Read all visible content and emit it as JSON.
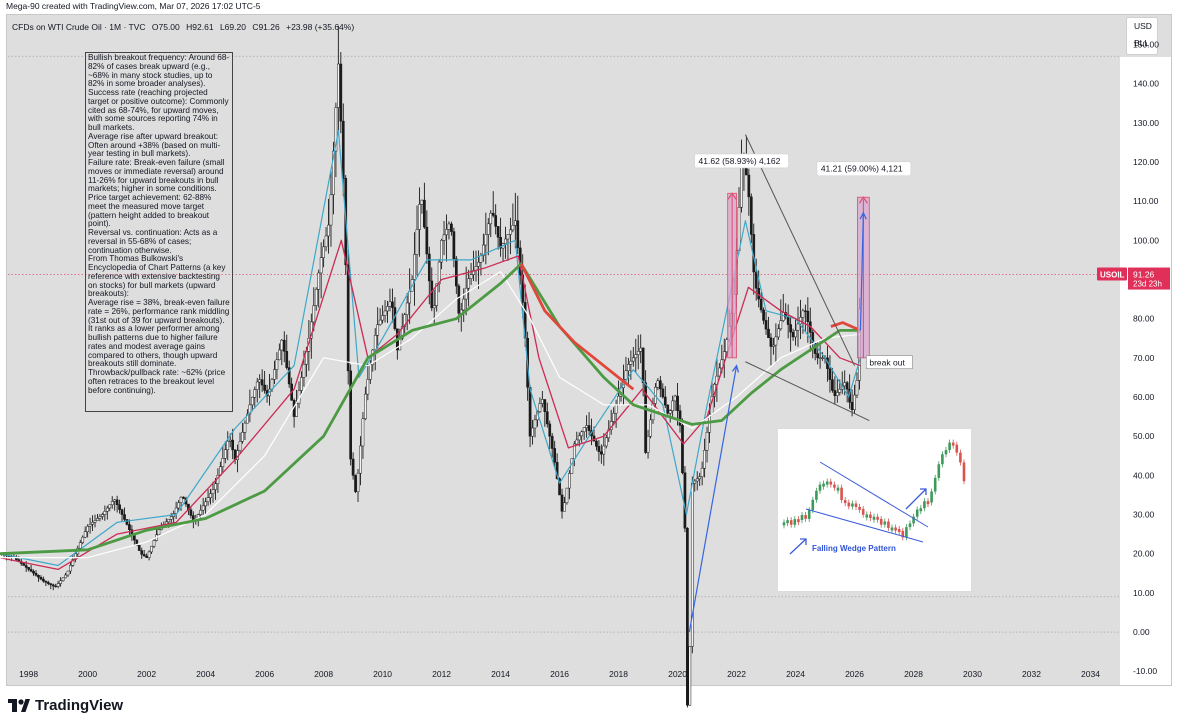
{
  "header": {
    "credit": "Mega-90 created with TradingView.com, Mar 07, 2026 17:02 UTC-5"
  },
  "symbol": {
    "name": "CFDs on WTI Crude Oil · 1M · TVC",
    "open": "O75.00",
    "high": "H92.61",
    "low": "L69.20",
    "close": "C91.26",
    "change": "+23.98 (+35.64%)"
  },
  "units": {
    "currency": "USD",
    "unit": "BLL"
  },
  "annotation_lines": [
    "Bullish breakout frequency: Around 68-82% of cases break upward (e.g., ~68% in many stock studies, up to 82% in some broader analyses).",
    "Success rate (reaching projected target or positive outcome): Commonly cited as 68-74%, for upward moves, with some sources reporting 74% in bull markets.",
    "Average rise after upward breakout: Often around +38% (based on multi-year testing in bull markets).",
    "Failure rate: Break-even failure (small moves or immediate reversal) around 11-26% for upward breakouts in bull markets; higher in some conditions.",
    "Price target achievement: 62-88% meet the measured move target (pattern height added to breakout point).",
    "Reversal vs. continuation: Acts as a reversal in 55-68% of cases; continuation otherwise.",
    "From Thomas Bulkowski's Encyclopedia of Chart Patterns (a key reference with extensive backtesting on stocks) for bull markets (upward breakouts):",
    "Average rise = 38%, break-even failure rate = 26%, performance rank middling (31st out of 39 for upward breakouts). It ranks as a lower performer among bullish patterns due to higher failure rates and modest average gains compared to others, though upward breakouts still dominate.",
    "Throwback/pullback rate: ~62% (price often retraces to the breakout level before continuing)."
  ],
  "footer": {
    "brand": "TradingView"
  },
  "colors": {
    "background": "#dedede",
    "candle": "#1a1a1a",
    "ma_fast": "#3fa7c9",
    "ma_mid": "#cc2b55",
    "ma_slow": "#ffffff",
    "ma_long_red": "#e0463a",
    "ma_long_green": "#4d9a44",
    "target_box": "#d7a6cf",
    "target_box_edge": "#e24a6b",
    "arrow": "#3565e0",
    "price_tag": "#e0305a"
  },
  "chart_data": {
    "type": "candlestick",
    "title": "CFDs on WTI Crude Oil · 1M · TVC",
    "x_axis": {
      "type": "date",
      "ticks": [
        "1998",
        "2000",
        "2002",
        "2004",
        "2006",
        "2008",
        "2010",
        "2012",
        "2014",
        "2016",
        "2018",
        "2020",
        "2022",
        "2024",
        "2026",
        "2028",
        "2030",
        "2032",
        "2034"
      ],
      "range": [
        1997.3,
        2035.0
      ]
    },
    "y_axis": {
      "ticks": [
        -10,
        0,
        10,
        20,
        30,
        40,
        50,
        60,
        70,
        80,
        90,
        100,
        110,
        120,
        130,
        140,
        150
      ],
      "tick_labels": [
        "-10.00",
        "0.00",
        "10.00",
        "20.00",
        "30.00",
        "40.00",
        "50.00",
        "60.00",
        "70.00",
        "80.00",
        "90.00",
        "100.00",
        "110.00",
        "120.00",
        "130.00",
        "140.00",
        "150.00"
      ],
      "range": [
        -13,
        157
      ],
      "position": "right"
    },
    "grid": false,
    "reference_levels": [
      {
        "value": 147,
        "style": "dotted"
      },
      {
        "value": 91.26,
        "style": "dotted",
        "color": "#e0305a"
      },
      {
        "value": 9,
        "style": "dotted"
      },
      {
        "value": 0,
        "style": "dotted"
      }
    ],
    "price_series": {
      "name": "USOIL",
      "points": [
        [
          1997.0,
          20
        ],
        [
          1997.5,
          19
        ],
        [
          1998.0,
          16
        ],
        [
          1998.5,
          13
        ],
        [
          1998.9,
          11.5
        ],
        [
          1999.3,
          15
        ],
        [
          1999.7,
          22
        ],
        [
          2000.0,
          27
        ],
        [
          2000.5,
          30
        ],
        [
          2000.9,
          34
        ],
        [
          2001.3,
          28
        ],
        [
          2001.8,
          20
        ],
        [
          2002.0,
          19
        ],
        [
          2002.4,
          26
        ],
        [
          2002.9,
          30
        ],
        [
          2003.2,
          35
        ],
        [
          2003.6,
          28
        ],
        [
          2003.9,
          32
        ],
        [
          2004.3,
          37
        ],
        [
          2004.8,
          50
        ],
        [
          2005.0,
          44
        ],
        [
          2005.5,
          58
        ],
        [
          2005.8,
          65
        ],
        [
          2006.1,
          60
        ],
        [
          2006.6,
          75
        ],
        [
          2007.0,
          55
        ],
        [
          2007.5,
          75
        ],
        [
          2007.9,
          95
        ],
        [
          2008.2,
          105
        ],
        [
          2008.5,
          145
        ],
        [
          2008.7,
          110
        ],
        [
          2008.9,
          45
        ],
        [
          2009.1,
          35
        ],
        [
          2009.4,
          60
        ],
        [
          2009.8,
          78
        ],
        [
          2010.3,
          85
        ],
        [
          2010.5,
          72
        ],
        [
          2011.0,
          90
        ],
        [
          2011.3,
          113
        ],
        [
          2011.7,
          80
        ],
        [
          2012.0,
          100
        ],
        [
          2012.3,
          105
        ],
        [
          2012.6,
          80
        ],
        [
          2012.9,
          90
        ],
        [
          2013.3,
          95
        ],
        [
          2013.7,
          108
        ],
        [
          2014.0,
          98
        ],
        [
          2014.5,
          105
        ],
        [
          2014.8,
          80
        ],
        [
          2015.0,
          50
        ],
        [
          2015.4,
          60
        ],
        [
          2015.8,
          45
        ],
        [
          2016.1,
          30
        ],
        [
          2016.5,
          48
        ],
        [
          2016.9,
          53
        ],
        [
          2017.4,
          45
        ],
        [
          2017.8,
          55
        ],
        [
          2018.3,
          68
        ],
        [
          2018.8,
          73
        ],
        [
          2018.9,
          45
        ],
        [
          2019.3,
          65
        ],
        [
          2019.7,
          55
        ],
        [
          2019.9,
          61
        ],
        [
          2020.1,
          52
        ],
        [
          2020.3,
          18
        ],
        [
          2020.35,
          -37
        ],
        [
          2020.5,
          38
        ],
        [
          2020.8,
          40
        ],
        [
          2021.2,
          62
        ],
        [
          2021.6,
          72
        ],
        [
          2021.9,
          84
        ],
        [
          2022.2,
          124
        ],
        [
          2022.4,
          113
        ],
        [
          2022.6,
          90
        ],
        [
          2022.9,
          80
        ],
        [
          2023.2,
          72
        ],
        [
          2023.6,
          82
        ],
        [
          2023.9,
          75
        ],
        [
          2024.3,
          83
        ],
        [
          2024.7,
          70
        ],
        [
          2025.0,
          70
        ],
        [
          2025.3,
          60
        ],
        [
          2025.7,
          64
        ],
        [
          2025.9,
          56
        ],
        [
          2026.1,
          65
        ],
        [
          2026.2,
          91.26
        ]
      ]
    },
    "moving_averages": [
      {
        "label": "fast",
        "color_key": "ma_fast",
        "points": [
          [
            1997.0,
            20
          ],
          [
            1999,
            17
          ],
          [
            2001,
            28
          ],
          [
            2003,
            30
          ],
          [
            2005,
            52
          ],
          [
            2007,
            68
          ],
          [
            2008.5,
            128
          ],
          [
            2009.2,
            65
          ],
          [
            2010,
            75
          ],
          [
            2011.5,
            95
          ],
          [
            2013,
            95
          ],
          [
            2014.5,
            100
          ],
          [
            2015,
            62
          ],
          [
            2016,
            38
          ],
          [
            2017,
            50
          ],
          [
            2018.5,
            67
          ],
          [
            2019.5,
            58
          ],
          [
            2020.3,
            30
          ],
          [
            2021,
            58
          ],
          [
            2022.3,
            105
          ],
          [
            2023,
            82
          ],
          [
            2024,
            80
          ],
          [
            2025,
            70
          ],
          [
            2025.8,
            60
          ],
          [
            2026.2,
            70
          ]
        ]
      },
      {
        "label": "mid",
        "color_key": "ma_mid",
        "points": [
          [
            1997.0,
            19
          ],
          [
            1999,
            16
          ],
          [
            2001,
            25
          ],
          [
            2003,
            28
          ],
          [
            2005,
            44
          ],
          [
            2007,
            62
          ],
          [
            2008.6,
            100
          ],
          [
            2009.5,
            70
          ],
          [
            2010.5,
            76
          ],
          [
            2012,
            90
          ],
          [
            2013.5,
            93
          ],
          [
            2014.6,
            96
          ],
          [
            2015.3,
            70
          ],
          [
            2016.3,
            47
          ],
          [
            2017.5,
            50
          ],
          [
            2018.8,
            62
          ],
          [
            2020.2,
            48
          ],
          [
            2021,
            55
          ],
          [
            2022.4,
            88
          ],
          [
            2023.5,
            82
          ],
          [
            2024.5,
            78
          ],
          [
            2025.5,
            70
          ],
          [
            2026.2,
            68
          ]
        ]
      },
      {
        "label": "slow",
        "color_key": "ma_slow",
        "points": [
          [
            1997.0,
            19
          ],
          [
            2000,
            19
          ],
          [
            2002,
            23
          ],
          [
            2004,
            30
          ],
          [
            2006,
            45
          ],
          [
            2008,
            70
          ],
          [
            2009.5,
            68
          ],
          [
            2011,
            75
          ],
          [
            2012.5,
            85
          ],
          [
            2014,
            92
          ],
          [
            2015,
            80
          ],
          [
            2016,
            65
          ],
          [
            2017.5,
            58
          ],
          [
            2019,
            58
          ],
          [
            2020.5,
            52
          ],
          [
            2022,
            60
          ],
          [
            2023.5,
            70
          ],
          [
            2025,
            75
          ],
          [
            2026.2,
            76
          ]
        ]
      },
      {
        "label": "long",
        "color_key": "ma_long_green",
        "points": [
          [
            1997.0,
            20
          ],
          [
            2000,
            21
          ],
          [
            2002,
            26
          ],
          [
            2004,
            29
          ],
          [
            2006,
            36
          ],
          [
            2008,
            50
          ],
          [
            2009.5,
            70
          ],
          [
            2011,
            77
          ],
          [
            2012.5,
            80
          ],
          [
            2014,
            89
          ],
          [
            2014.7,
            94
          ],
          [
            2016,
            78
          ],
          [
            2017.5,
            65
          ],
          [
            2018.5,
            58
          ],
          [
            2020.5,
            53
          ],
          [
            2021.5,
            54
          ],
          [
            2022.5,
            61
          ],
          [
            2023.5,
            67
          ],
          [
            2024.5,
            72
          ],
          [
            2025.5,
            77
          ],
          [
            2026.2,
            77
          ]
        ]
      }
    ],
    "pattern": {
      "name": "falling wedge",
      "upper_line": [
        [
          2022.3,
          127
        ],
        [
          2026.0,
          68
        ]
      ],
      "lower_line": [
        [
          2022.3,
          69
        ],
        [
          2026.5,
          54
        ]
      ]
    },
    "measured_moves": [
      {
        "label": "41.62 (58.93%) 4,162",
        "from": 70,
        "to": 112,
        "x_range": [
          2021.7,
          2022.0
        ]
      },
      {
        "label": "41.21 (59.00%) 4,121",
        "from": 70,
        "to": 111,
        "x_range": [
          2026.1,
          2026.5
        ]
      }
    ],
    "arrows": [
      {
        "from": [
          2020.4,
          0
        ],
        "to": [
          2022.0,
          68
        ]
      },
      {
        "from": [
          2026.2,
          77
        ],
        "to": [
          2026.3,
          107
        ]
      }
    ],
    "labels": [
      {
        "text": "break out",
        "at": [
          2026.3,
          68.5
        ]
      }
    ],
    "last_price": {
      "symbol": "USOIL",
      "value": "91.26",
      "countdown": "23d 23h"
    },
    "inset": {
      "title": "Falling Wedge Pattern"
    }
  }
}
